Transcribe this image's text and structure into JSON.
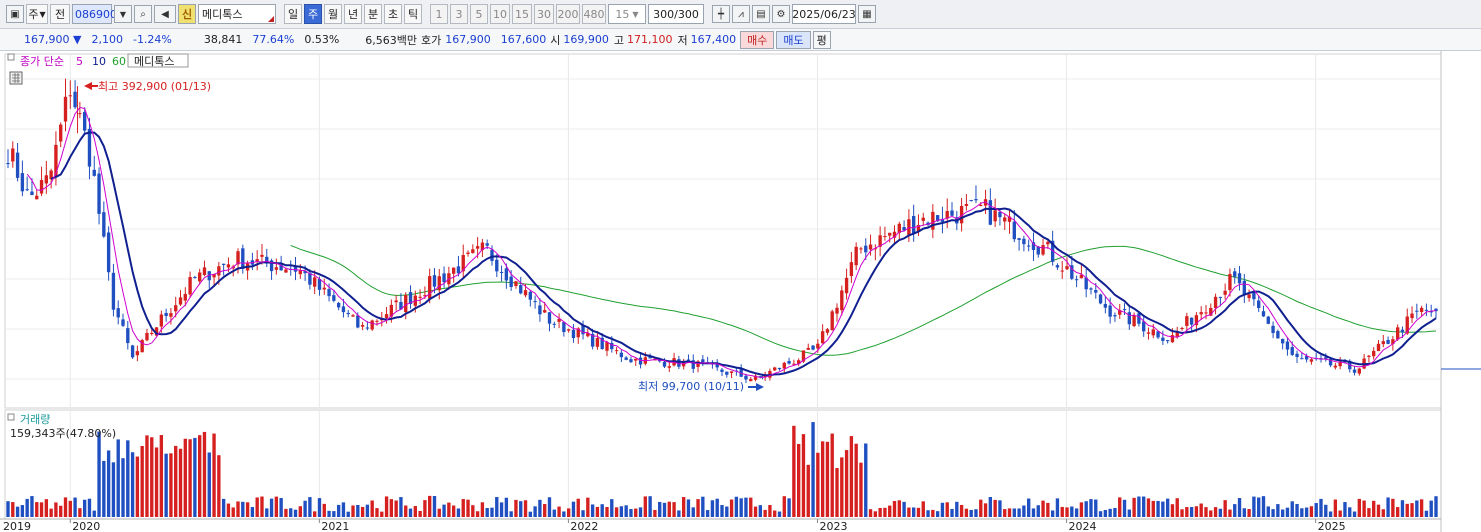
{
  "toolbar": {
    "market": "주",
    "market_type": "전",
    "code": "086900",
    "stock_name": "메디톡스",
    "credit_badge": "신",
    "periods": [
      "일",
      "주",
      "월",
      "년",
      "분",
      "초",
      "틱"
    ],
    "active_period": "주",
    "intervals": [
      "1",
      "3",
      "5",
      "10",
      "15",
      "30",
      "200",
      "480"
    ],
    "interval_value": "15",
    "count_value": "300",
    "count_total": "/300",
    "date": "2025/06/23"
  },
  "quote": {
    "price": "167,900",
    "change": "2,100",
    "change_rate": "-1.24%",
    "volume": "38,841",
    "vol_ratio": "77.64%",
    "turnover": "0.53%",
    "amount": "6,563백만",
    "bid_label": "호가",
    "bid1": "167,900",
    "bid2": "167,600",
    "open_label": "시",
    "open": "169,900",
    "high_label": "고",
    "high": "171,100",
    "low_label": "저",
    "low": "167,400",
    "buy_label": "매수",
    "sell_label": "매도",
    "eval_label": "평"
  },
  "legend": {
    "ma_label": "종가 단순",
    "ma5": "5",
    "ma10": "10",
    "ma60": "60",
    "stock": "메디톡스"
  },
  "annotations": {
    "high": "최고 392,900 (01/13)",
    "low": "최저 99,700 (10/11)"
  },
  "volume_panel": {
    "title": "거래량",
    "value": "159,343주(47.80%)"
  },
  "x_axis": [
    "2019",
    "2020",
    "2021",
    "2022",
    "2023",
    "2024",
    "2025"
  ],
  "colors": {
    "up": "#d62020",
    "down": "#1f4fc0",
    "ma5": "#d000d0",
    "ma10": "#102090",
    "ma60": "#20a030"
  },
  "chart_data": {
    "type": "candlestick",
    "price_key_points": [
      {
        "date": "2019-10",
        "price": 330000
      },
      {
        "date": "2019-11",
        "price": 280000
      },
      {
        "date": "2019-12",
        "price": 300000
      },
      {
        "date": "2020-01",
        "price": 392900
      },
      {
        "date": "2020-02",
        "price": 320000
      },
      {
        "date": "2020-03",
        "price": 180000
      },
      {
        "date": "2020-04",
        "price": 120000
      },
      {
        "date": "2020-05",
        "price": 150000
      },
      {
        "date": "2020-07",
        "price": 200000
      },
      {
        "date": "2020-09",
        "price": 220000
      },
      {
        "date": "2020-12",
        "price": 210000
      },
      {
        "date": "2021-03",
        "price": 150000
      },
      {
        "date": "2021-06",
        "price": 190000
      },
      {
        "date": "2021-09",
        "price": 230000
      },
      {
        "date": "2021-12",
        "price": 160000
      },
      {
        "date": "2022-04",
        "price": 120000
      },
      {
        "date": "2022-07",
        "price": 115000
      },
      {
        "date": "2022-10",
        "price": 99700
      },
      {
        "date": "2023-01",
        "price": 130000
      },
      {
        "date": "2023-03",
        "price": 230000
      },
      {
        "date": "2023-06",
        "price": 260000
      },
      {
        "date": "2023-09",
        "price": 270000
      },
      {
        "date": "2023-12",
        "price": 230000
      },
      {
        "date": "2024-03",
        "price": 170000
      },
      {
        "date": "2024-06",
        "price": 140000
      },
      {
        "date": "2024-09",
        "price": 200000
      },
      {
        "date": "2024-12",
        "price": 120000
      },
      {
        "date": "2025-03",
        "price": 110000
      },
      {
        "date": "2025-06",
        "price": 167900
      }
    ],
    "high": {
      "value": 392900,
      "date": "2020-01-13"
    },
    "low": {
      "value": 99700,
      "date": "2022-10-11"
    },
    "last": 167900
  }
}
